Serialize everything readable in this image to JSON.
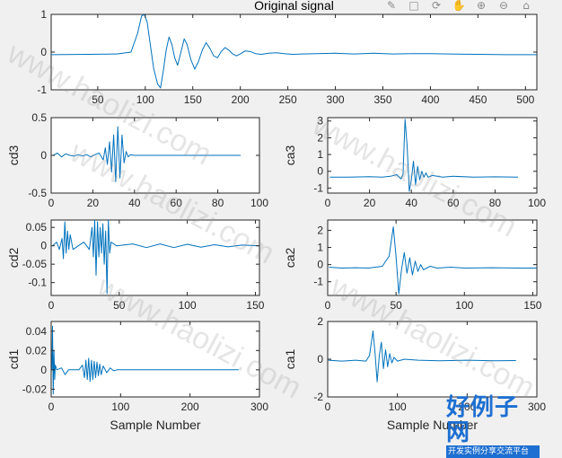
{
  "figure": {
    "background": "#f0f0f0",
    "line_color": "#0072bd",
    "toolbar_icons": [
      "brush-icon",
      "data-tip-icon",
      "rotate-icon",
      "pan-icon",
      "zoom-in-icon",
      "zoom-out-icon",
      "home-icon"
    ]
  },
  "watermark": {
    "text": "www.haolizi.com",
    "logo_main": "好例子网",
    "logo_sub": "开发实例分享交流平台"
  },
  "chart_data": [
    {
      "id": "orig",
      "type": "line",
      "title": "Original signal",
      "xlabel": "",
      "ylabel": "",
      "xlim": [
        1,
        512
      ],
      "ylim": [
        -1,
        1
      ],
      "xticks": [
        50,
        100,
        150,
        200,
        250,
        300,
        350,
        400,
        450,
        500
      ],
      "yticks": [
        -1,
        0,
        1
      ],
      "series": [
        {
          "values": [
            [
              1,
              -0.07
            ],
            [
              40,
              -0.06
            ],
            [
              70,
              -0.05
            ],
            [
              85,
              0.0
            ],
            [
              92,
              0.5
            ],
            [
              96,
              0.95
            ],
            [
              99,
              1.0
            ],
            [
              102,
              0.8
            ],
            [
              105,
              0.25
            ],
            [
              109,
              -0.45
            ],
            [
              113,
              -0.85
            ],
            [
              116,
              -0.95
            ],
            [
              119,
              -0.5
            ],
            [
              122,
              0.05
            ],
            [
              125,
              0.4
            ],
            [
              128,
              0.2
            ],
            [
              131,
              -0.15
            ],
            [
              134,
              -0.35
            ],
            [
              137,
              -0.05
            ],
            [
              141,
              0.35
            ],
            [
              144,
              0.2
            ],
            [
              148,
              -0.2
            ],
            [
              152,
              -0.45
            ],
            [
              156,
              -0.25
            ],
            [
              160,
              0.05
            ],
            [
              164,
              0.25
            ],
            [
              168,
              0.1
            ],
            [
              172,
              -0.1
            ],
            [
              176,
              -0.15
            ],
            [
              180,
              0.02
            ],
            [
              184,
              0.12
            ],
            [
              188,
              0.05
            ],
            [
              192,
              -0.05
            ],
            [
              196,
              -0.1
            ],
            [
              200,
              -0.05
            ],
            [
              205,
              0.03
            ],
            [
              210,
              0.02
            ],
            [
              216,
              -0.04
            ],
            [
              222,
              -0.06
            ],
            [
              230,
              -0.03
            ],
            [
              238,
              -0.02
            ],
            [
              246,
              -0.04
            ],
            [
              255,
              -0.06
            ],
            [
              265,
              -0.05
            ],
            [
              280,
              -0.04
            ],
            [
              300,
              -0.03
            ],
            [
              320,
              -0.05
            ],
            [
              340,
              -0.03
            ],
            [
              360,
              -0.05
            ],
            [
              380,
              -0.04
            ],
            [
              400,
              -0.04
            ],
            [
              420,
              -0.05
            ],
            [
              450,
              -0.06
            ],
            [
              480,
              -0.07
            ],
            [
              512,
              -0.07
            ]
          ]
        }
      ]
    },
    {
      "id": "cd3",
      "type": "line",
      "title": "",
      "xlabel": "",
      "ylabel": "cd3",
      "xlim": [
        0,
        100
      ],
      "ylim": [
        -0.5,
        0.5
      ],
      "xticks": [
        0,
        20,
        40,
        60,
        80,
        100
      ],
      "yticks": [
        -0.5,
        0,
        0.5
      ],
      "series": [
        {
          "values": [
            [
              1,
              0.0
            ],
            [
              3,
              0.03
            ],
            [
              5,
              -0.02
            ],
            [
              7,
              0.02
            ],
            [
              9,
              0.0
            ],
            [
              11,
              -0.01
            ],
            [
              13,
              0.01
            ],
            [
              15,
              -0.01
            ],
            [
              17,
              0.01
            ],
            [
              19,
              -0.02
            ],
            [
              21,
              0.01
            ],
            [
              23,
              0.03
            ],
            [
              25,
              -0.06
            ],
            [
              26,
              0.1
            ],
            [
              27,
              -0.12
            ],
            [
              28,
              0.18
            ],
            [
              29,
              -0.22
            ],
            [
              30,
              0.27
            ],
            [
              31,
              -0.35
            ],
            [
              32,
              0.38
            ],
            [
              33,
              -0.3
            ],
            [
              34,
              0.27
            ],
            [
              35,
              -0.1
            ],
            [
              36,
              0.05
            ],
            [
              37,
              -0.02
            ],
            [
              38,
              0.01
            ],
            [
              40,
              0.0
            ],
            [
              50,
              0.0
            ],
            [
              70,
              0.0
            ],
            [
              91,
              0.0
            ]
          ]
        }
      ]
    },
    {
      "id": "ca3",
      "type": "line",
      "title": "",
      "xlabel": "",
      "ylabel": "ca3",
      "xlim": [
        0,
        100
      ],
      "ylim": [
        -1.3,
        3.2
      ],
      "xticks": [
        0,
        20,
        40,
        60,
        80,
        100
      ],
      "yticks": [
        -1,
        0,
        1,
        2,
        3
      ],
      "series": [
        {
          "values": [
            [
              1,
              -0.35
            ],
            [
              10,
              -0.35
            ],
            [
              20,
              -0.32
            ],
            [
              26,
              -0.35
            ],
            [
              30,
              -0.3
            ],
            [
              33,
              -0.2
            ],
            [
              35,
              -0.45
            ],
            [
              36,
              -0.2
            ],
            [
              37,
              3.1
            ],
            [
              38,
              1.5
            ],
            [
              39,
              -1.2
            ],
            [
              40,
              -0.5
            ],
            [
              41,
              0.6
            ],
            [
              42,
              -0.8
            ],
            [
              43,
              0.3
            ],
            [
              44,
              -0.5
            ],
            [
              45,
              0.0
            ],
            [
              46,
              -0.35
            ],
            [
              47,
              -0.1
            ],
            [
              48,
              -0.35
            ],
            [
              50,
              -0.25
            ],
            [
              55,
              -0.35
            ],
            [
              60,
              -0.3
            ],
            [
              70,
              -0.35
            ],
            [
              80,
              -0.33
            ],
            [
              91,
              -0.35
            ]
          ]
        }
      ]
    },
    {
      "id": "cd2",
      "type": "line",
      "title": "",
      "xlabel": "",
      "ylabel": "cd2",
      "xlim": [
        0,
        153
      ],
      "ylim": [
        -0.135,
        0.07
      ],
      "xticks": [
        0,
        50,
        100,
        150
      ],
      "yticks": [
        -0.1,
        -0.05,
        0,
        0.05
      ],
      "series": [
        {
          "values": [
            [
              1,
              0.0
            ],
            [
              4,
              0.01
            ],
            [
              6,
              -0.01
            ],
            [
              8,
              0.02
            ],
            [
              9,
              -0.035
            ],
            [
              10,
              0.065
            ],
            [
              11,
              -0.02
            ],
            [
              12,
              0.04
            ],
            [
              13,
              -0.01
            ],
            [
              14,
              0.03
            ],
            [
              16,
              -0.01
            ],
            [
              20,
              0.0
            ],
            [
              24,
              0.01
            ],
            [
              28,
              -0.01
            ],
            [
              30,
              0.05
            ],
            [
              31,
              -0.03
            ],
            [
              32,
              0.07
            ],
            [
              33,
              -0.08
            ],
            [
              34,
              0.065
            ],
            [
              35,
              -0.03
            ],
            [
              36,
              0.05
            ],
            [
              37,
              -0.02
            ],
            [
              38,
              0.06
            ],
            [
              39,
              -0.05
            ],
            [
              40,
              0.04
            ],
            [
              41,
              -0.13
            ],
            [
              42,
              0.07
            ],
            [
              43,
              -0.02
            ],
            [
              44,
              0.01
            ],
            [
              48,
              0.0
            ],
            [
              60,
              0.005
            ],
            [
              70,
              -0.005
            ],
            [
              80,
              0.005
            ],
            [
              90,
              -0.005
            ],
            [
              100,
              0.004
            ],
            [
              110,
              -0.004
            ],
            [
              120,
              0.003
            ],
            [
              130,
              -0.003
            ],
            [
              140,
              0.002
            ],
            [
              153,
              0.0
            ]
          ]
        }
      ]
    },
    {
      "id": "ca2",
      "type": "line",
      "title": "",
      "xlabel": "",
      "ylabel": "ca2",
      "xlim": [
        0,
        153
      ],
      "ylim": [
        -1.8,
        2.6
      ],
      "xticks": [
        0,
        50,
        100,
        150
      ],
      "yticks": [
        -1,
        0,
        1,
        2
      ],
      "series": [
        {
          "values": [
            [
              1,
              -0.15
            ],
            [
              10,
              -0.2
            ],
            [
              20,
              -0.18
            ],
            [
              30,
              -0.2
            ],
            [
              40,
              -0.1
            ],
            [
              45,
              0.5
            ],
            [
              48,
              2.2
            ],
            [
              50,
              0.5
            ],
            [
              52,
              -1.7
            ],
            [
              54,
              -0.3
            ],
            [
              56,
              0.7
            ],
            [
              58,
              -0.5
            ],
            [
              60,
              0.4
            ],
            [
              62,
              -0.6
            ],
            [
              64,
              0.2
            ],
            [
              66,
              -0.4
            ],
            [
              68,
              0.0
            ],
            [
              70,
              -0.3
            ],
            [
              75,
              -0.1
            ],
            [
              80,
              -0.2
            ],
            [
              90,
              -0.15
            ],
            [
              100,
              -0.2
            ],
            [
              120,
              -0.18
            ],
            [
              140,
              -0.2
            ],
            [
              153,
              -0.2
            ]
          ]
        }
      ]
    },
    {
      "id": "cd1",
      "type": "line",
      "title": "",
      "xlabel": "Sample Number",
      "ylabel": "cd1",
      "xlim": [
        0,
        300
      ],
      "ylim": [
        -0.028,
        0.05
      ],
      "xticks": [
        0,
        100,
        200,
        300
      ],
      "yticks": [
        -0.02,
        0,
        0.02,
        0.04
      ],
      "series": [
        {
          "values": [
            [
              1,
              0.0
            ],
            [
              2,
              0.045
            ],
            [
              3,
              -0.025
            ],
            [
              4,
              0.02
            ],
            [
              5,
              -0.01
            ],
            [
              6,
              0.005
            ],
            [
              8,
              0.0
            ],
            [
              15,
              0.002
            ],
            [
              20,
              -0.005
            ],
            [
              25,
              0.0
            ],
            [
              40,
              0.0
            ],
            [
              45,
              0.005
            ],
            [
              48,
              -0.008
            ],
            [
              50,
              0.01
            ],
            [
              52,
              -0.01
            ],
            [
              54,
              0.012
            ],
            [
              56,
              -0.012
            ],
            [
              58,
              0.01
            ],
            [
              60,
              -0.01
            ],
            [
              62,
              0.009
            ],
            [
              64,
              -0.008
            ],
            [
              66,
              0.008
            ],
            [
              68,
              -0.006
            ],
            [
              70,
              0.006
            ],
            [
              72,
              -0.005
            ],
            [
              75,
              0.004
            ],
            [
              80,
              -0.003
            ],
            [
              85,
              0.002
            ],
            [
              90,
              -0.001
            ],
            [
              95,
              0.0
            ],
            [
              120,
              0.0
            ],
            [
              200,
              0.0
            ],
            [
              270,
              0.0
            ]
          ]
        }
      ]
    },
    {
      "id": "ca1",
      "type": "line",
      "title": "",
      "xlabel": "Sample Number",
      "ylabel": "ca1",
      "xlim": [
        0,
        300
      ],
      "ylim": [
        -2,
        2
      ],
      "xticks": [
        0,
        100,
        200,
        300
      ],
      "yticks": [
        -2,
        0,
        2
      ],
      "series": [
        {
          "values": [
            [
              1,
              -0.05
            ],
            [
              20,
              -0.1
            ],
            [
              40,
              -0.05
            ],
            [
              55,
              -0.1
            ],
            [
              60,
              0.2
            ],
            [
              65,
              1.5
            ],
            [
              68,
              0.3
            ],
            [
              71,
              -1.2
            ],
            [
              74,
              0.2
            ],
            [
              77,
              0.9
            ],
            [
              80,
              -0.5
            ],
            [
              83,
              0.5
            ],
            [
              86,
              -0.4
            ],
            [
              89,
              0.3
            ],
            [
              92,
              -0.2
            ],
            [
              95,
              0.1
            ],
            [
              100,
              -0.1
            ],
            [
              110,
              0.0
            ],
            [
              130,
              -0.05
            ],
            [
              160,
              -0.08
            ],
            [
              200,
              -0.05
            ],
            [
              240,
              -0.08
            ],
            [
              270,
              -0.07
            ]
          ]
        }
      ]
    }
  ]
}
